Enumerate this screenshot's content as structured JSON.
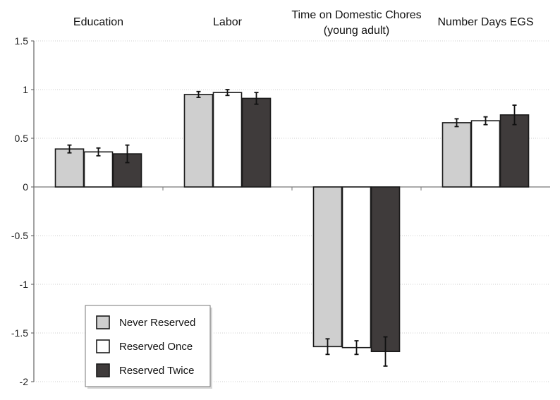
{
  "chart_data": {
    "type": "bar",
    "categories": [
      "Education",
      "Labor",
      "Time on Domestic Chores (young adult)",
      "Number Days EGS"
    ],
    "category_title_lines": [
      [
        "Education"
      ],
      [
        "Labor"
      ],
      [
        "Time on Domestic Chores",
        "(young adult)"
      ],
      [
        "Number Days EGS"
      ]
    ],
    "series": [
      {
        "name": "Never Reserved",
        "values": [
          0.39,
          0.95,
          -1.64,
          0.66
        ],
        "error": [
          0.04,
          0.03,
          0.08,
          0.04
        ],
        "color": "#cfcfcf"
      },
      {
        "name": "Reserved Once",
        "values": [
          0.36,
          0.97,
          -1.65,
          0.68
        ],
        "error": [
          0.04,
          0.03,
          0.07,
          0.04
        ],
        "color": "#ffffff"
      },
      {
        "name": "Reserved Twice",
        "values": [
          0.34,
          0.91,
          -1.69,
          0.74
        ],
        "error": [
          0.09,
          0.06,
          0.15,
          0.1
        ],
        "color": "#3f3b3b"
      }
    ],
    "ylim": [
      -2,
      1.5
    ],
    "yticks": [
      "1.5",
      "1",
      "0.5",
      "0",
      "-0.5",
      "-1",
      "-1.5",
      "-2"
    ],
    "ytick_values": [
      1.5,
      1,
      0.5,
      0,
      -0.5,
      -1,
      -1.5,
      -2
    ],
    "grid": true,
    "legend_position": "bottom-left",
    "title": "",
    "xlabel": "",
    "ylabel": ""
  }
}
